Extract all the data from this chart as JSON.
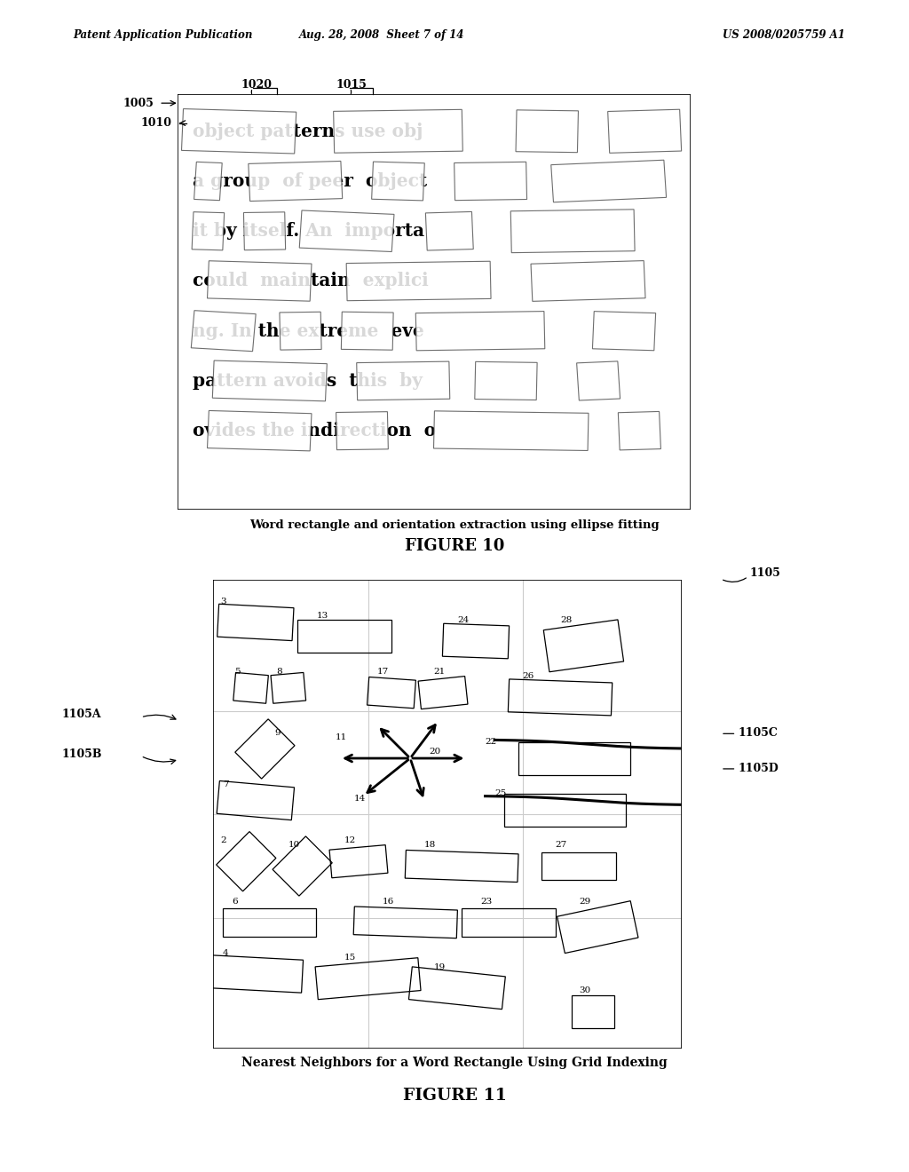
{
  "header_left": "Patent Application Publication",
  "header_center": "Aug. 28, 2008  Sheet 7 of 14",
  "header_right": "US 2008/0205759 A1",
  "fig10_caption": "Word rectangle and orientation extraction using ellipse fitting",
  "fig10_label": "FIGURE 10",
  "fig11_caption": "Nearest Neighbors for a Word Rectangle Using Grid Indexing",
  "fig11_label": "FIGURE 11",
  "fig10_text_lines": [
    [
      "object",
      "patterns",
      "use",
      "obj"
    ],
    [
      "a",
      "group",
      "of",
      "peer",
      "object"
    ],
    [
      "it",
      "by",
      "itself.",
      "An",
      "importa"
    ],
    [
      "could",
      "maintain",
      "explici"
    ],
    [
      "ng.",
      "In",
      "the",
      "extreme",
      "eve"
    ],
    [
      "pattern",
      "avoids",
      "this",
      "by"
    ],
    [
      "ovides",
      "the",
      "indirection",
      "o"
    ]
  ]
}
